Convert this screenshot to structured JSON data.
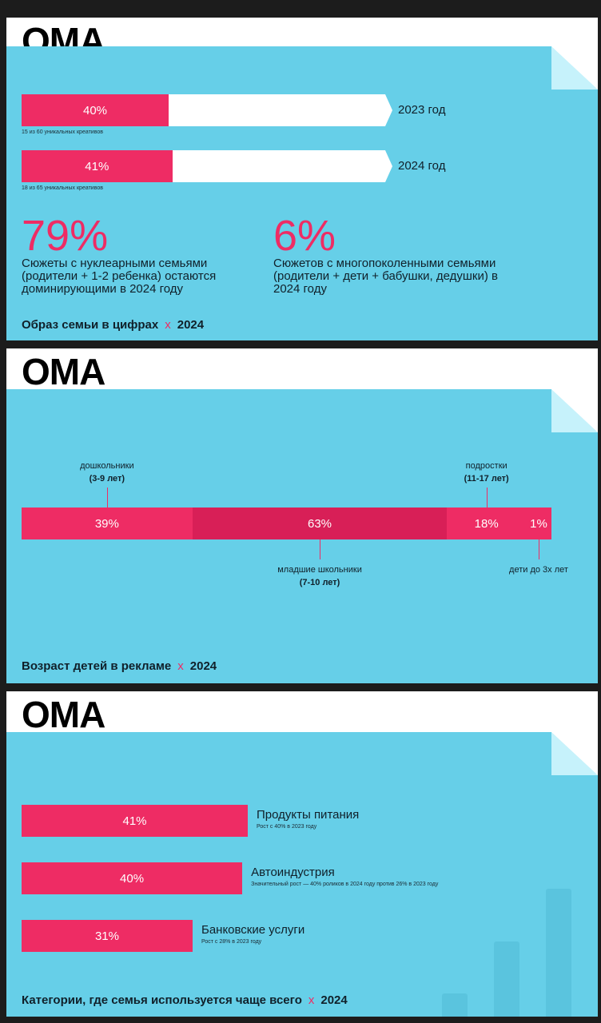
{
  "brand": "OMA",
  "colors": {
    "accent": "#ee2c64",
    "accent_dark": "#d81f57",
    "background": "#66cfe8"
  },
  "slides": [
    {
      "footer": {
        "title": "Образ семьи в цифрах",
        "sep": "x",
        "year": "2024"
      },
      "bars": [
        {
          "label": "40%",
          "value": 40,
          "year": "2023 год",
          "note": "15 из 60 уникальных креативов"
        },
        {
          "label": "41%",
          "value": 41,
          "year": "2024 год",
          "note": "18 из 65 уникальных креативов"
        }
      ],
      "stats": [
        {
          "value": "79%",
          "text": "Сюжеты с нуклеарными семьями (родители + 1-2 ребенка) остаются доминирующими в 2024 году"
        },
        {
          "value": "6%",
          "text": "Сюжетов с многопоколенными семьями (родители + дети + бабушки, дедушки) в 2024 году"
        }
      ]
    },
    {
      "footer": {
        "title": "Возраст детей в рекламе",
        "sep": "x",
        "year": "2024"
      },
      "segments": [
        {
          "label": "39%",
          "value": 39,
          "name": "дошкольники",
          "range": "(3-9 лет)"
        },
        {
          "label": "63%",
          "value": 63,
          "name": "младшие школьники",
          "range": "(7-10 лет)"
        },
        {
          "label": "18%",
          "value": 18,
          "name": "подростки",
          "range": "(11-17 лет)"
        },
        {
          "label": "1%",
          "value": 1,
          "name": "дети до 3х лет",
          "range": ""
        }
      ]
    },
    {
      "footer": {
        "title": "Категории, где семья используется чаще всего",
        "sep": "x",
        "year": "2024"
      },
      "bars": [
        {
          "label": "41%",
          "value": 41,
          "name": "Продукты питания",
          "note": "Рост с 40% в 2023 году"
        },
        {
          "label": "40%",
          "value": 40,
          "name": "Автоиндустрия",
          "note": "Значительный рост — 40% роликов в 2024 году против 26% в 2023 году"
        },
        {
          "label": "31%",
          "value": 31,
          "name": "Банковские услуги",
          "note": "Рост с 28% в 2023 году"
        }
      ]
    }
  ],
  "chart_data": [
    {
      "type": "bar",
      "categories": [
        "2023 год",
        "2024 год"
      ],
      "values": [
        40,
        41
      ],
      "ylim": [
        0,
        100
      ]
    },
    {
      "type": "bar",
      "categories": [
        "дошкольники (3-9 лет)",
        "младшие школьники (7-10 лет)",
        "подростки (11-17 лет)",
        "дети до 3х лет"
      ],
      "values": [
        39,
        63,
        18,
        1
      ]
    },
    {
      "type": "bar",
      "categories": [
        "Продукты питания",
        "Автоиндустрия",
        "Банковские услуги"
      ],
      "values": [
        41,
        40,
        31
      ]
    }
  ]
}
